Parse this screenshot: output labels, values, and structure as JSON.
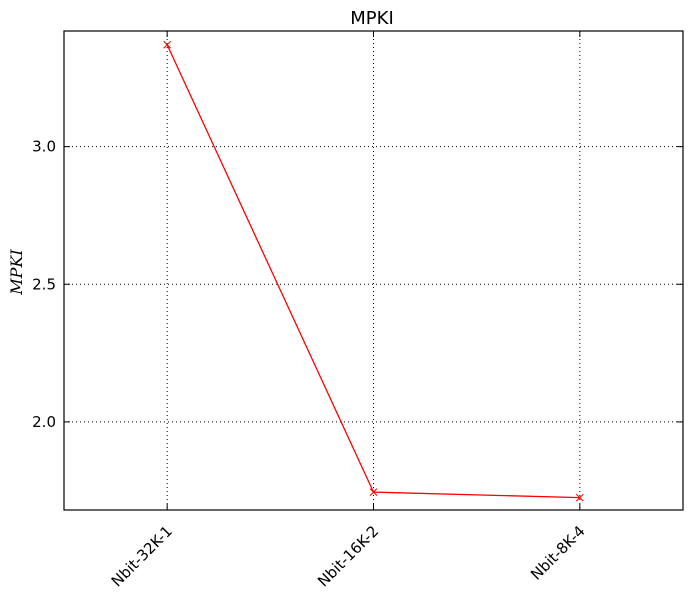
{
  "chart_data": {
    "type": "line",
    "title": "MPKI",
    "xlabel": "",
    "ylabel": "MPKI",
    "categories": [
      "Nbit-32K-1",
      "Nbit-16K-2",
      "Nbit-8K-4"
    ],
    "series": [
      {
        "name": "MPKI",
        "values": [
          3.37,
          1.745,
          1.725
        ],
        "color": "#ff0000",
        "marker": "x"
      }
    ],
    "ylim": [
      1.68,
      3.42
    ],
    "yticks": [
      2.0,
      2.5,
      3.0
    ],
    "ytick_labels": [
      "2.0",
      "2.5",
      "3.0"
    ],
    "grid": true,
    "colors": {
      "line": "#ff0000",
      "grid": "#000000",
      "axes": "#000000"
    }
  }
}
